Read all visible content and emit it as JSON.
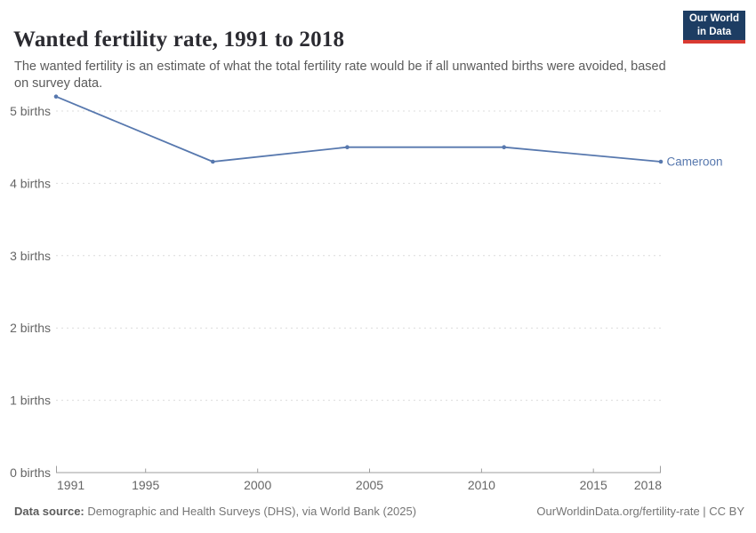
{
  "header": {
    "title": "Wanted fertility rate, 1991 to 2018",
    "subtitle": "The wanted fertility is an estimate of what the total fertility rate would be if all unwanted births were avoided, based on survey data.",
    "logo": {
      "line1": "Our World",
      "line2": "in Data",
      "bg_color": "#1d3d63",
      "accent_color": "#d93a32"
    }
  },
  "chart_data": {
    "type": "line",
    "title": "Wanted fertility rate, 1991 to 2018",
    "xlabel": "",
    "ylabel": "births",
    "xlim": [
      1991,
      2018
    ],
    "ylim": [
      0,
      5.5
    ],
    "grid": "horizontal dashed gridlines on",
    "legend_position": "label at end of line",
    "x_ticks": [
      "1991",
      "1995",
      "2000",
      "2005",
      "2010",
      "2015",
      "2018"
    ],
    "y_tick_labels": [
      "0 births",
      "1 births",
      "2 births",
      "3 births",
      "4 births",
      "5 births"
    ],
    "series": [
      {
        "name": "Cameroon",
        "color": "#5778ae",
        "x": [
          1991,
          1998,
          2004,
          2011,
          2018
        ],
        "values": [
          5.2,
          4.3,
          4.5,
          4.5,
          4.3
        ]
      }
    ]
  },
  "footer": {
    "source_label": "Data source:",
    "source_text": "Demographic and Health Surveys (DHS), via World Bank (2025)",
    "credit": "OurWorldinData.org/fertility-rate | CC BY"
  }
}
